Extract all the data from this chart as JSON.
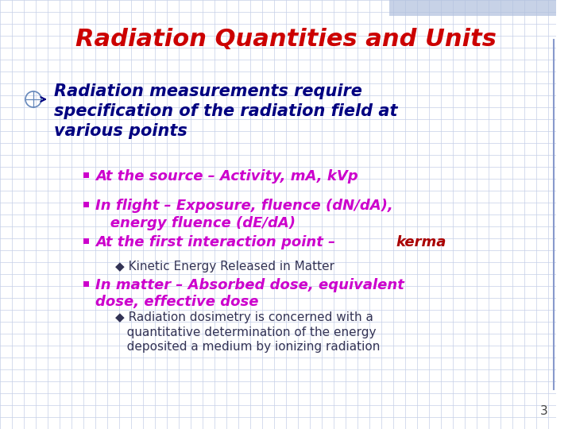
{
  "title": "Radiation Quantities and Units",
  "title_color": "#CC0000",
  "title_fontsize": 22,
  "bg_color": "#EEF2FA",
  "grid_color": "#C5CFE8",
  "bullet_main_color": "#000080",
  "bullet_main_fontsize": 15,
  "sub_bullet_color": "#CC00CC",
  "sub_bullet_fontsize": 13,
  "kerma_text": "kerma",
  "kerma_color": "#AA0000",
  "sub_sub_color": "#333355",
  "sub_sub_fontsize": 11,
  "page_num": "3",
  "slide_bg": "#FFFFFF",
  "right_bar_color": "#8899CC",
  "top_bar_color": "#B0C0DD"
}
